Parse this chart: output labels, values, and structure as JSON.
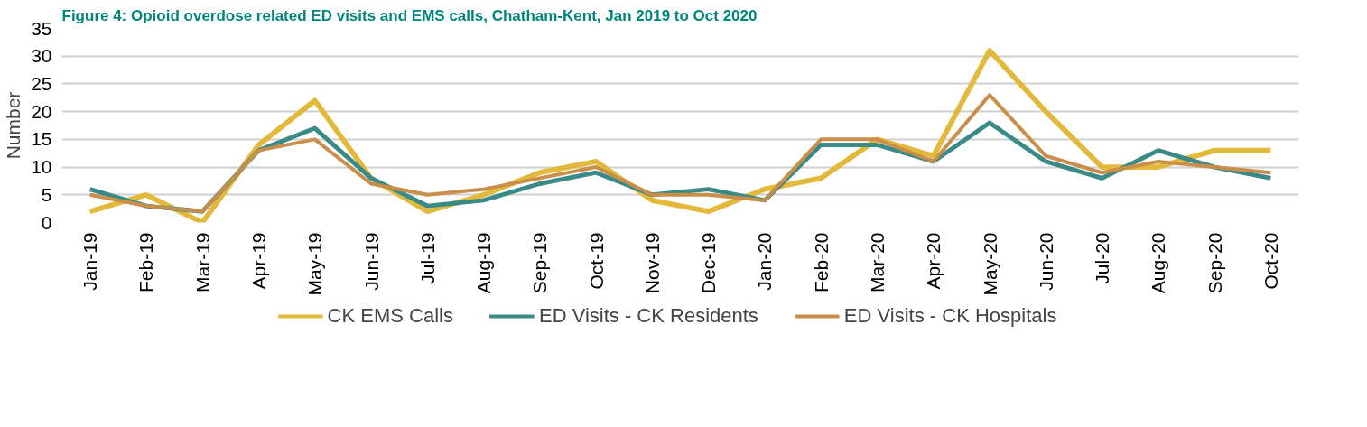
{
  "chart_data": {
    "type": "line",
    "title": "Figure 4: Opioid overdose related ED visits and EMS calls, Chatham-Kent, Jan 2019 to Oct 2020",
    "ylabel": "Number",
    "categories": [
      "Jan-19",
      "Feb-19",
      "Mar-19",
      "Apr-19",
      "May-19",
      "Jun-19",
      "Jul-19",
      "Aug-19",
      "Sep-19",
      "Oct-19",
      "Nov-19",
      "Dec-19",
      "Jan-20",
      "Feb-20",
      "Mar-20",
      "Apr-20",
      "May-20",
      "Jun-20",
      "Jul-20",
      "Aug-20",
      "Sep-20",
      "Oct-20"
    ],
    "series": [
      {
        "name": "CK EMS Calls",
        "color": "#e3b93c",
        "values": [
          2,
          5,
          0,
          14,
          22,
          8,
          2,
          5,
          9,
          11,
          4,
          2,
          6,
          8,
          15,
          12,
          31,
          20,
          10,
          10,
          13,
          13
        ]
      },
      {
        "name": "ED Visits - CK Residents",
        "color": "#3a8a87",
        "values": [
          6,
          3,
          2,
          13,
          17,
          8,
          3,
          4,
          7,
          9,
          5,
          6,
          4,
          14,
          14,
          11,
          18,
          11,
          8,
          13,
          10,
          8
        ]
      },
      {
        "name": "ED Visits - CK Hospitals",
        "color": "#c98f4a",
        "values": [
          5,
          3,
          2,
          13,
          15,
          7,
          5,
          6,
          8,
          10,
          5,
          5,
          4,
          15,
          15,
          11,
          23,
          12,
          9,
          11,
          10,
          9
        ]
      }
    ],
    "ylim": [
      0,
      35
    ],
    "yticks": [
      0,
      5,
      10,
      15,
      20,
      25,
      30,
      35
    ],
    "grid": "y",
    "legend": "bottom",
    "marker": "none",
    "line_style": "solid"
  }
}
